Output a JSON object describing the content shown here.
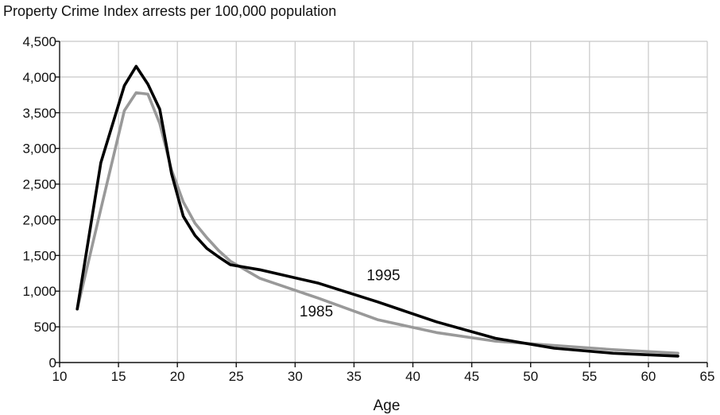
{
  "chart_data": {
    "type": "line",
    "title": "Property Crime Index arrests per 100,000 population",
    "xlabel": "Age",
    "ylabel": "",
    "xlim": [
      10,
      65
    ],
    "ylim": [
      0,
      4500
    ],
    "grid": true,
    "x_ticks": [
      10,
      15,
      20,
      25,
      30,
      35,
      40,
      45,
      50,
      55,
      60,
      65
    ],
    "y_ticks": [
      0,
      500,
      1000,
      1500,
      2000,
      2500,
      3000,
      3500,
      4000,
      4500
    ],
    "x_tick_labels": [
      "10",
      "15",
      "20",
      "25",
      "30",
      "35",
      "40",
      "45",
      "50",
      "55",
      "60",
      "65"
    ],
    "y_tick_labels": [
      "0",
      "500",
      "1,000",
      "1,500",
      "2,000",
      "2,500",
      "3,000",
      "3,500",
      "4,000",
      "4,500"
    ],
    "series": [
      {
        "name": "1985",
        "color": "#999999",
        "x": [
          11.5,
          13.5,
          15.5,
          16.5,
          17.5,
          18.5,
          19.5,
          20.5,
          21.5,
          22.5,
          23.5,
          24.5,
          27.0,
          32.0,
          37.0,
          42.0,
          47.0,
          52.0,
          57.0,
          62.5
        ],
        "y": [
          750,
          2150,
          3530,
          3780,
          3760,
          3350,
          2700,
          2250,
          1950,
          1750,
          1570,
          1420,
          1180,
          900,
          600,
          420,
          300,
          240,
          180,
          130
        ]
      },
      {
        "name": "1995",
        "color": "#000000",
        "x": [
          11.5,
          13.5,
          15.5,
          16.5,
          17.5,
          18.5,
          19.5,
          20.5,
          21.5,
          22.5,
          23.5,
          24.5,
          27.0,
          32.0,
          37.0,
          42.0,
          47.0,
          52.0,
          57.0,
          62.5
        ],
        "y": [
          750,
          2800,
          3880,
          4150,
          3900,
          3550,
          2650,
          2050,
          1780,
          1600,
          1480,
          1370,
          1300,
          1110,
          850,
          570,
          340,
          200,
          130,
          90
        ]
      }
    ],
    "annotations": [
      {
        "text": "1995",
        "x": 37.5,
        "y": 1110
      },
      {
        "text": "1985",
        "x": 31.8,
        "y": 600
      }
    ]
  }
}
